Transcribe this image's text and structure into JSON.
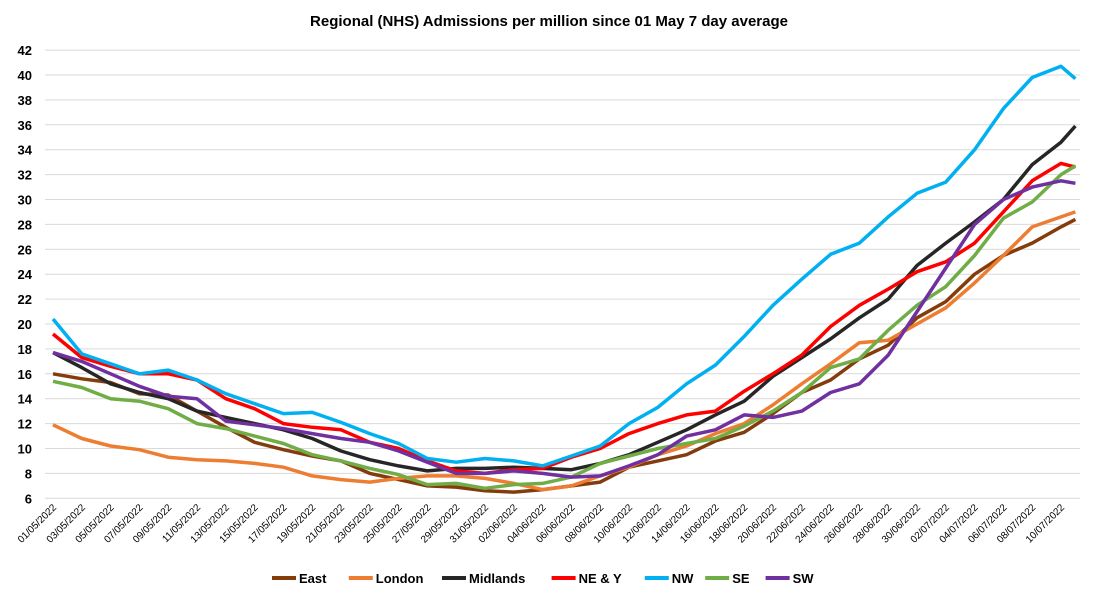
{
  "chart_data": {
    "type": "line",
    "title": "Regional (NHS) Admissions per million since 01 May 7 day average",
    "xlabel": "",
    "ylabel": "",
    "ylim": [
      6,
      42
    ],
    "yticks": [
      6,
      8,
      10,
      12,
      14,
      16,
      18,
      20,
      22,
      24,
      26,
      28,
      30,
      32,
      34,
      36,
      38,
      40,
      42
    ],
    "grid": true,
    "legend_position": "bottom",
    "xtick_labels": [
      "01/05/2022",
      "03/05/2022",
      "05/05/2022",
      "07/05/2022",
      "09/05/2022",
      "11/05/2022",
      "13/05/2022",
      "15/05/2022",
      "17/05/2022",
      "19/05/2022",
      "21/05/2022",
      "23/05/2022",
      "25/05/2022",
      "27/05/2022",
      "29/05/2022",
      "31/05/2022",
      "02/06/2022",
      "04/06/2022",
      "06/06/2022",
      "08/06/2022",
      "10/06/2022",
      "12/06/2022",
      "14/06/2022",
      "16/06/2022",
      "18/06/2022",
      "20/06/2022",
      "22/06/2022",
      "24/06/2022",
      "26/06/2022",
      "28/06/2022",
      "30/06/2022",
      "02/07/2022",
      "04/07/2022",
      "06/07/2022",
      "08/07/2022",
      "10/07/2022"
    ],
    "x": [
      "01/05/2022",
      "03/05/2022",
      "05/05/2022",
      "07/05/2022",
      "09/05/2022",
      "11/05/2022",
      "13/05/2022",
      "15/05/2022",
      "17/05/2022",
      "19/05/2022",
      "21/05/2022",
      "23/05/2022",
      "25/05/2022",
      "27/05/2022",
      "29/05/2022",
      "31/05/2022",
      "02/06/2022",
      "04/06/2022",
      "06/06/2022",
      "08/06/2022",
      "10/06/2022",
      "12/06/2022",
      "14/06/2022",
      "16/06/2022",
      "18/06/2022",
      "20/06/2022",
      "22/06/2022",
      "24/06/2022",
      "26/06/2022",
      "28/06/2022",
      "30/06/2022",
      "02/07/2022",
      "04/07/2022",
      "06/07/2022",
      "08/07/2022",
      "10/07/2022",
      "11/07/2022"
    ],
    "series": [
      {
        "name": "East",
        "color": "#843C0C",
        "values": [
          16.0,
          15.6,
          15.3,
          14.4,
          14.3,
          13.0,
          11.7,
          10.5,
          9.9,
          9.4,
          9.0,
          8.0,
          7.5,
          7.0,
          6.9,
          6.6,
          6.5,
          6.7,
          7.0,
          7.3,
          8.5,
          9.0,
          9.5,
          10.6,
          11.3,
          12.8,
          14.5,
          15.5,
          17.2,
          18.3,
          20.5,
          21.8,
          24.0,
          25.5,
          26.5,
          27.8,
          28.4
        ]
      },
      {
        "name": "London",
        "color": "#ED7D31",
        "values": [
          11.9,
          10.8,
          10.2,
          9.9,
          9.3,
          9.1,
          9.0,
          8.8,
          8.5,
          7.8,
          7.5,
          7.3,
          7.6,
          7.8,
          7.8,
          7.6,
          7.2,
          6.7,
          7.0,
          7.8,
          8.5,
          9.5,
          10.2,
          11.2,
          12.0,
          13.5,
          15.2,
          16.8,
          18.5,
          18.7,
          20.0,
          21.3,
          23.3,
          25.5,
          27.8,
          28.6,
          29.0
        ]
      },
      {
        "name": "Midlands",
        "color": "#262626",
        "values": [
          17.7,
          16.5,
          15.2,
          14.5,
          14.0,
          13.0,
          12.5,
          12.0,
          11.5,
          10.8,
          9.8,
          9.1,
          8.6,
          8.2,
          8.4,
          8.4,
          8.5,
          8.4,
          8.3,
          8.8,
          9.5,
          10.5,
          11.5,
          12.7,
          13.8,
          15.8,
          17.3,
          18.8,
          20.5,
          22.0,
          24.7,
          26.5,
          28.2,
          30.0,
          32.8,
          34.6,
          35.9
        ]
      },
      {
        "name": "NE & Y",
        "color": "#FF0000",
        "values": [
          19.2,
          17.3,
          16.6,
          16.0,
          16.0,
          15.5,
          14.0,
          13.2,
          12.0,
          11.7,
          11.5,
          10.5,
          10.0,
          9.0,
          8.2,
          8.0,
          8.3,
          8.4,
          9.3,
          10.0,
          11.2,
          12.0,
          12.7,
          13.0,
          14.6,
          16.0,
          17.5,
          19.8,
          21.5,
          22.8,
          24.2,
          25.0,
          26.5,
          29.0,
          31.5,
          32.9,
          32.6
        ]
      },
      {
        "name": "NW",
        "color": "#00B0F0",
        "values": [
          20.4,
          17.6,
          16.8,
          16.0,
          16.3,
          15.5,
          14.4,
          13.6,
          12.8,
          12.9,
          12.1,
          11.2,
          10.4,
          9.2,
          8.9,
          9.2,
          9.0,
          8.6,
          9.4,
          10.2,
          12.0,
          13.3,
          15.2,
          16.7,
          19.0,
          21.5,
          23.6,
          25.6,
          26.5,
          28.6,
          30.5,
          31.4,
          34.0,
          37.3,
          39.8,
          40.7,
          39.7
        ]
      },
      {
        "name": "SE",
        "color": "#70AD47",
        "values": [
          15.4,
          14.9,
          14.0,
          13.8,
          13.2,
          12.0,
          11.6,
          11.0,
          10.4,
          9.5,
          9.0,
          8.4,
          7.9,
          7.1,
          7.2,
          6.8,
          7.1,
          7.2,
          7.7,
          8.8,
          9.4,
          10.0,
          10.4,
          10.8,
          11.8,
          13.0,
          14.5,
          16.5,
          17.2,
          19.5,
          21.5,
          23.0,
          25.5,
          28.5,
          29.8,
          32.0,
          32.7
        ]
      },
      {
        "name": "SW",
        "color": "#7030A0",
        "values": [
          17.7,
          17.0,
          16.0,
          15.0,
          14.2,
          14.0,
          12.2,
          11.9,
          11.6,
          11.2,
          10.8,
          10.5,
          9.8,
          8.9,
          8.0,
          8.0,
          8.2,
          8.0,
          7.7,
          7.8,
          8.6,
          9.5,
          11.0,
          11.5,
          12.7,
          12.5,
          13.0,
          14.5,
          15.2,
          17.5,
          21.0,
          24.5,
          28.0,
          30.0,
          31.0,
          31.5,
          31.3
        ]
      }
    ]
  }
}
